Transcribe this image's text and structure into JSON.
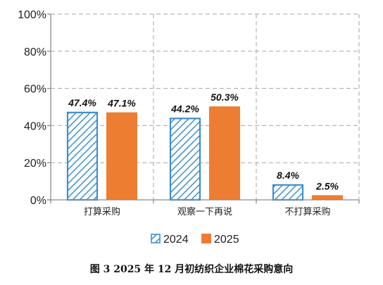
{
  "caption": "图 3   2025 年 12 月初纺织企业棉花采购意向",
  "colors": {
    "s2024_stripe": "#3d8fd1",
    "s2025_fill": "#ed7d31",
    "axis": "#8c8c8c",
    "grid": "#a6a6a6"
  },
  "chart_data": {
    "type": "bar",
    "title": "",
    "xlabel": "",
    "ylabel": "",
    "categories": [
      "打算采购",
      "观察一下再说",
      "不打算采购"
    ],
    "series": [
      {
        "name": "2024",
        "values": [
          47.4,
          44.2,
          8.4
        ],
        "labels": [
          "47.4%",
          "44.2%",
          "8.4%"
        ]
      },
      {
        "name": "2025",
        "values": [
          47.1,
          50.3,
          2.5
        ],
        "labels": [
          "47.1%",
          "50.3%",
          "2.5%"
        ]
      }
    ],
    "ylim": [
      0,
      100
    ],
    "yticks": [
      "0%",
      "20%",
      "40%",
      "60%",
      "80%",
      "100%"
    ],
    "grid": true,
    "legend": "bottom"
  }
}
